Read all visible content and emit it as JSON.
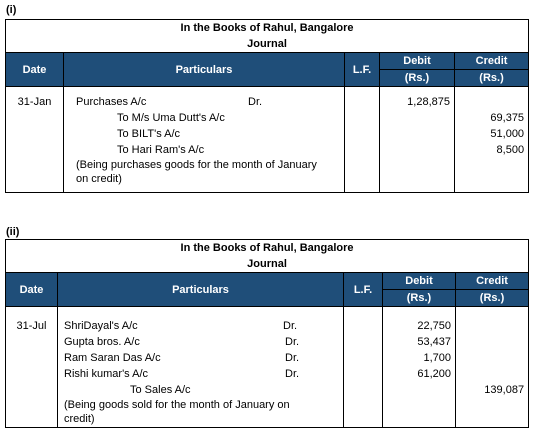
{
  "section1": {
    "label": "(i)",
    "title_line1": "In the Books of Rahul, Bangalore",
    "title_line2": "Journal",
    "headers": {
      "date": "Date",
      "particulars": "Particulars",
      "lf": "L.F.",
      "debit": "Debit",
      "credit": "Credit",
      "debit_unit": "(Rs.)",
      "credit_unit": "(Rs.)"
    },
    "date": "31-Jan",
    "debit_line": {
      "account": "Purchases A/c",
      "dr": "Dr.",
      "amount": "1,28,875"
    },
    "credit_lines": [
      {
        "account": "To M/s Uma Dutt's A/c",
        "amount": "69,375"
      },
      {
        "account": "To BILT's A/c",
        "amount": "51,000"
      },
      {
        "account": "To Hari Ram's A/c",
        "amount": "8,500"
      }
    ],
    "narration_line1": "(Being purchases goods for the month of January",
    "narration_line2": "on credit)"
  },
  "section2": {
    "label": "(ii)",
    "title_line1": "In the Books of Rahul, Bangalore",
    "title_line2": "Journal",
    "headers": {
      "date": "Date",
      "particulars": "Particulars",
      "lf": "L.F.",
      "debit": "Debit",
      "credit": "Credit",
      "debit_unit": "(Rs.)",
      "credit_unit": "(Rs.)"
    },
    "date": "31-Jul",
    "debit_lines": [
      {
        "account": "ShriDayal's A/c",
        "dr": "Dr.",
        "amount": "22,750"
      },
      {
        "account": "Gupta bros. A/c",
        "dr": "Dr.",
        "amount": "53,437"
      },
      {
        "account": "Ram Saran Das A/c",
        "dr": "Dr.",
        "amount": "1,700"
      },
      {
        "account": "Rishi kumar's A/c",
        "dr": "Dr.",
        "amount": "61,200"
      }
    ],
    "credit_line": {
      "account": "To Sales A/c",
      "amount": "139,087"
    },
    "narration_line1": "(Being goods sold for the month of January on",
    "narration_line2": "credit)"
  }
}
